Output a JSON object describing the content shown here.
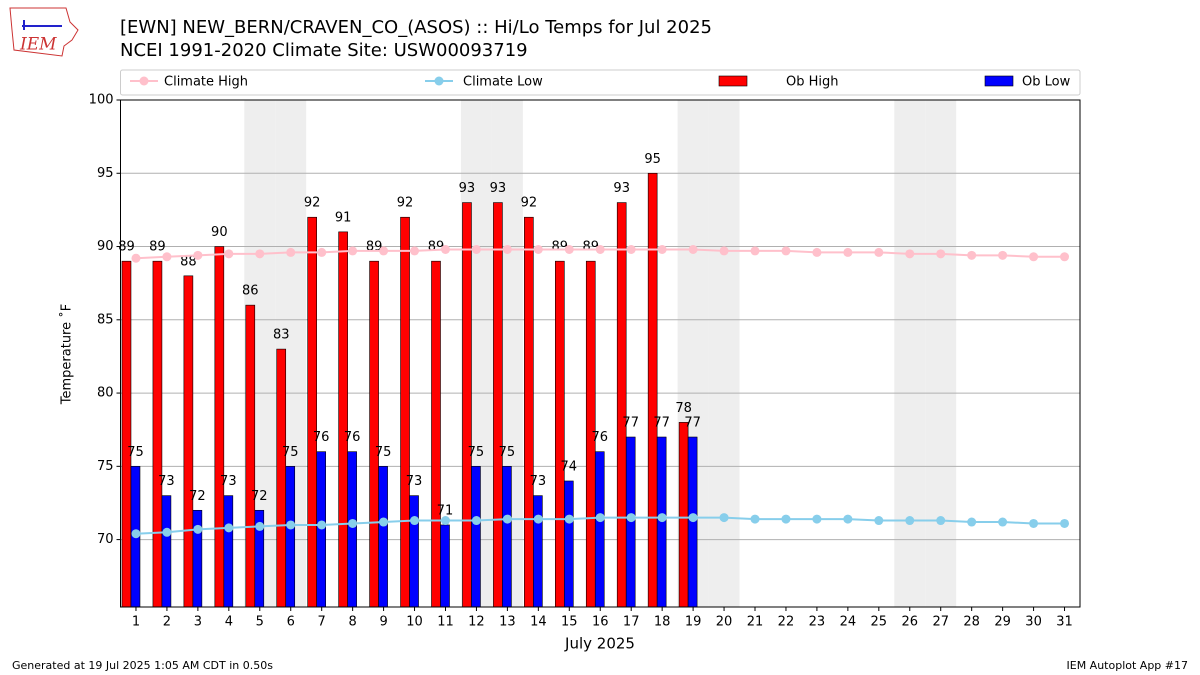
{
  "chart_data": {
    "type": "bar",
    "title": "[EWN] NEW_BERN/CRAVEN_CO_(ASOS) :: Hi/Lo Temps for Jul 2025",
    "subtitle": "NCEI 1991-2020 Climate Site: USW00093719",
    "logo_text": "IEM",
    "x_label": "July 2025",
    "y_label": "Temperature ˚F",
    "footer_left": "Generated at 19 Jul 2025 1:05 AM CDT in 0.50s",
    "footer_right": "IEM Autoplot App #17",
    "categories": [
      "1",
      "2",
      "3",
      "4",
      "5",
      "6",
      "7",
      "8",
      "9",
      "10",
      "11",
      "12",
      "13",
      "14",
      "15",
      "16",
      "17",
      "18",
      "19",
      "20",
      "21",
      "22",
      "23",
      "24",
      "25",
      "26",
      "27",
      "28",
      "29",
      "30",
      "31"
    ],
    "shaded_days": [
      5,
      6,
      12,
      13,
      19,
      20,
      26,
      27
    ],
    "series": [
      {
        "name": "Climate High",
        "type": "line",
        "color": "#ffc0cb",
        "values": [
          89.2,
          89.3,
          89.4,
          89.5,
          89.5,
          89.6,
          89.6,
          89.7,
          89.7,
          89.7,
          89.8,
          89.8,
          89.8,
          89.8,
          89.8,
          89.8,
          89.8,
          89.8,
          89.8,
          89.7,
          89.7,
          89.7,
          89.6,
          89.6,
          89.6,
          89.5,
          89.5,
          89.4,
          89.4,
          89.3,
          89.3
        ]
      },
      {
        "name": "Climate Low",
        "type": "line",
        "color": "#87ceeb",
        "values": [
          70.4,
          70.5,
          70.7,
          70.8,
          70.9,
          71.0,
          71.0,
          71.1,
          71.2,
          71.3,
          71.3,
          71.3,
          71.4,
          71.4,
          71.4,
          71.5,
          71.5,
          71.5,
          71.5,
          71.5,
          71.4,
          71.4,
          71.4,
          71.4,
          71.3,
          71.3,
          71.3,
          71.2,
          71.2,
          71.1,
          71.1
        ]
      },
      {
        "name": "Ob High",
        "type": "bar",
        "color": "#ff0000",
        "values": [
          89,
          89,
          88,
          90,
          86,
          83,
          92,
          91,
          89,
          92,
          89,
          93,
          93,
          92,
          89,
          89,
          93,
          95,
          78,
          null,
          null,
          null,
          null,
          null,
          null,
          null,
          null,
          null,
          null,
          null,
          null
        ]
      },
      {
        "name": "Ob Low",
        "type": "bar",
        "color": "#0000ff",
        "values": [
          75,
          73,
          72,
          73,
          72,
          75,
          76,
          76,
          75,
          73,
          71,
          75,
          75,
          73,
          74,
          76,
          77,
          77,
          77,
          null,
          null,
          null,
          null,
          null,
          null,
          null,
          null,
          null,
          null,
          null,
          null
        ]
      }
    ],
    "ylim": [
      65.4,
      100
    ],
    "yticks": [
      70,
      75,
      80,
      85,
      90,
      95,
      100
    ],
    "grid": true
  }
}
